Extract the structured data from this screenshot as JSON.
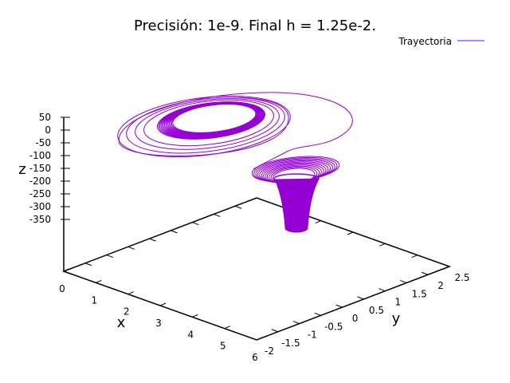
{
  "chart_data": {
    "type": "line",
    "title": "Precisión: 1e-9. Final h = 1.25e-2.",
    "xlabel": "x",
    "ylabel": "y",
    "zlabel": "z",
    "xlim": [
      0,
      6
    ],
    "ylim": [
      -2,
      2.5
    ],
    "zlim": [
      -350,
      50
    ],
    "x_ticks": [
      "0",
      "1",
      "2",
      "3",
      "4",
      "5",
      "6"
    ],
    "y_ticks": [
      "-2",
      "-1.5",
      "-1",
      "-0.5",
      "0",
      "0.5",
      "1",
      "1.5",
      "2",
      "2.5"
    ],
    "z_ticks": [
      "50",
      "0",
      "-50",
      "-100",
      "-150",
      "-200",
      "-250",
      "-300",
      "-350"
    ],
    "legend_position": "top-right",
    "series": [
      {
        "name": "Trayectoria",
        "color": "#9400d3"
      }
    ]
  }
}
